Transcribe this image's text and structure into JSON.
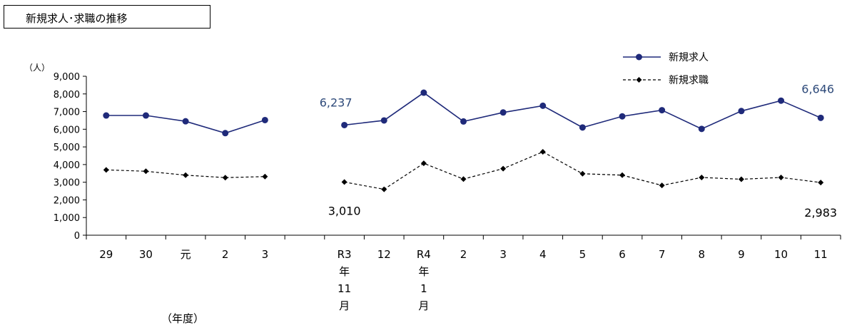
{
  "title": "新規求人･求職の推移",
  "chart_data": {
    "type": "line",
    "unit_label": "（人）",
    "xlabel": "（年度）",
    "ylim": [
      0,
      9000
    ],
    "y_ticks": [
      "0",
      "1,000",
      "2,000",
      "3,000",
      "4,000",
      "5,000",
      "6,000",
      "7,000",
      "8,000",
      "9,000"
    ],
    "categories": [
      "29",
      "30",
      "元",
      "2",
      "3",
      "",
      "R3年11月",
      "12",
      "R4年1月",
      "2",
      "3",
      "4",
      "5",
      "6",
      "7",
      "8",
      "9",
      "10",
      "11"
    ],
    "category_labels": [
      [
        "29"
      ],
      [
        "30"
      ],
      [
        "元"
      ],
      [
        "2"
      ],
      [
        "3"
      ],
      [
        ""
      ],
      [
        "R3",
        "年",
        "11",
        "月"
      ],
      [
        "12"
      ],
      [
        "R4",
        "年",
        "1",
        "月"
      ],
      [
        "2"
      ],
      [
        "3"
      ],
      [
        "4"
      ],
      [
        "5"
      ],
      [
        "6"
      ],
      [
        "7"
      ],
      [
        "8"
      ],
      [
        "9"
      ],
      [
        "10"
      ],
      [
        "11"
      ]
    ],
    "series": [
      {
        "name": "新規求人",
        "color": "#1f2a7a",
        "style": "solid",
        "marker": "circle",
        "values": [
          6780,
          6780,
          6450,
          5780,
          6520,
          null,
          6237,
          6500,
          8070,
          6440,
          6950,
          7330,
          6100,
          6730,
          7080,
          6020,
          7030,
          7620,
          6646
        ]
      },
      {
        "name": "新規求職",
        "color": "#000000",
        "style": "dashed",
        "marker": "diamond",
        "values": [
          3700,
          3620,
          3400,
          3260,
          3320,
          null,
          3010,
          2600,
          4070,
          3180,
          3770,
          4720,
          3480,
          3400,
          2820,
          3270,
          3170,
          3270,
          2983
        ]
      }
    ],
    "annotations": [
      {
        "text": "6,237",
        "color": "#2e4a7a"
      },
      {
        "text": "6,646",
        "color": "#2e4a7a"
      },
      {
        "text": "3,010",
        "color": "#000000"
      },
      {
        "text": "2,983",
        "color": "#000000"
      }
    ],
    "legend": "top-right"
  }
}
